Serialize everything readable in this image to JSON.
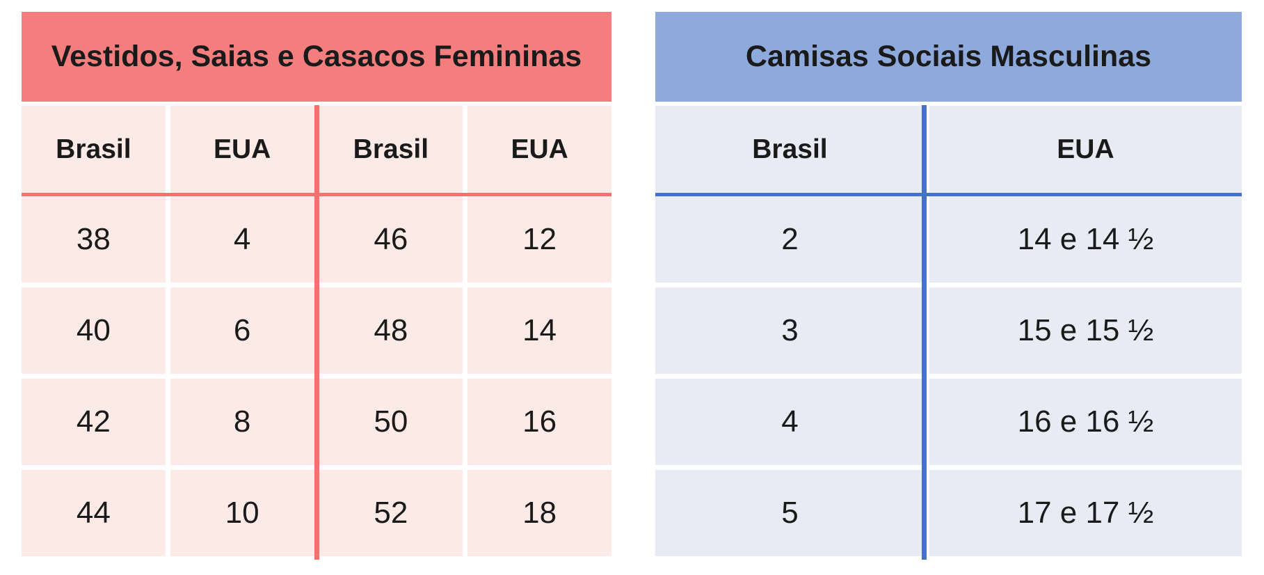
{
  "page": {
    "background": "#FFFFFF"
  },
  "chart_data": [
    {
      "type": "table",
      "title": "Vestidos, Saias e Casacos Femininas",
      "columns": [
        "Brasil",
        "EUA",
        "Brasil",
        "EUA"
      ],
      "rows": [
        [
          "38",
          "4",
          "46",
          "12"
        ],
        [
          "40",
          "6",
          "48",
          "14"
        ],
        [
          "42",
          "8",
          "50",
          "16"
        ],
        [
          "44",
          "10",
          "52",
          "18"
        ]
      ],
      "theme": {
        "title_bg": "#F47E7E",
        "cell_bg": "#FBEAE5",
        "line_color": "#F5706E",
        "text_color": "#1A1A1A"
      }
    },
    {
      "type": "table",
      "title": "Camisas Sociais Masculinas",
      "columns": [
        "Brasil",
        "EUA"
      ],
      "rows": [
        [
          "2",
          "14 e 14 ½"
        ],
        [
          "3",
          "15 e 15 ½"
        ],
        [
          "4",
          "16 e 16 ½"
        ],
        [
          "5",
          "17 e 17 ½"
        ]
      ],
      "theme": {
        "title_bg": "#8EA9DB",
        "cell_bg": "#E9EBF4",
        "line_color": "#4472C4",
        "text_color": "#1A1A1A"
      }
    }
  ]
}
